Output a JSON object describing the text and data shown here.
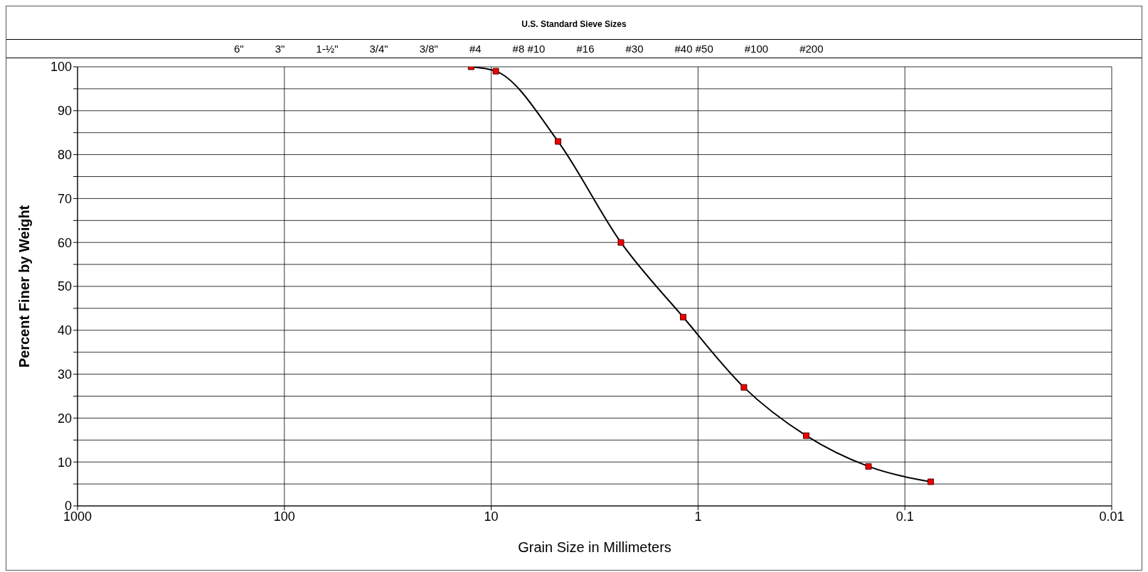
{
  "chart_data": {
    "type": "line",
    "x2label": "U.S. Standard Sieve Sizes",
    "xlabel": "Grain Size in Millimeters",
    "ylabel": "Percent Finer by Weight",
    "x": [
      12.5,
      9.5,
      4.75,
      2.36,
      1.18,
      0.6,
      0.3,
      0.15,
      0.075
    ],
    "series": [
      {
        "color": "#000000",
        "values": [
          100,
          99,
          83,
          60,
          43,
          27,
          16,
          9,
          5.5
        ],
        "marker": "none"
      },
      {
        "type": "scatter",
        "color": "#ee0000",
        "values": [
          100,
          99,
          83,
          60,
          43,
          27,
          16,
          9,
          5.5
        ],
        "marker": "square"
      }
    ],
    "log": "x",
    "xlim": [
      1000,
      0.01
    ],
    "xticks": [
      1000,
      100,
      10,
      1,
      0.1,
      0.01
    ],
    "annotations": [
      "6\"",
      "3\"",
      "1-½\"",
      "3/4\"",
      "3/8\"",
      "#4",
      "#8 #10",
      "#16",
      "#30",
      "#40 #50",
      "#100",
      "#200"
    ],
    "ylim": [
      0,
      100
    ],
    "yticks": [
      0,
      {
        "value": 5,
        "label": null
      },
      10,
      {
        "value": 15,
        "label": null
      },
      20,
      {
        "value": 25,
        "label": null
      },
      30,
      {
        "value": 35,
        "label": null
      },
      40,
      {
        "value": 45,
        "label": null
      },
      50,
      {
        "value": 55,
        "label": null
      },
      60,
      {
        "value": 65,
        "label": null
      },
      70,
      {
        "value": 75,
        "label": null
      },
      80,
      {
        "value": 85,
        "label": null
      },
      90,
      {
        "value": 95,
        "label": null
      },
      100
    ],
    "grid": true
  }
}
